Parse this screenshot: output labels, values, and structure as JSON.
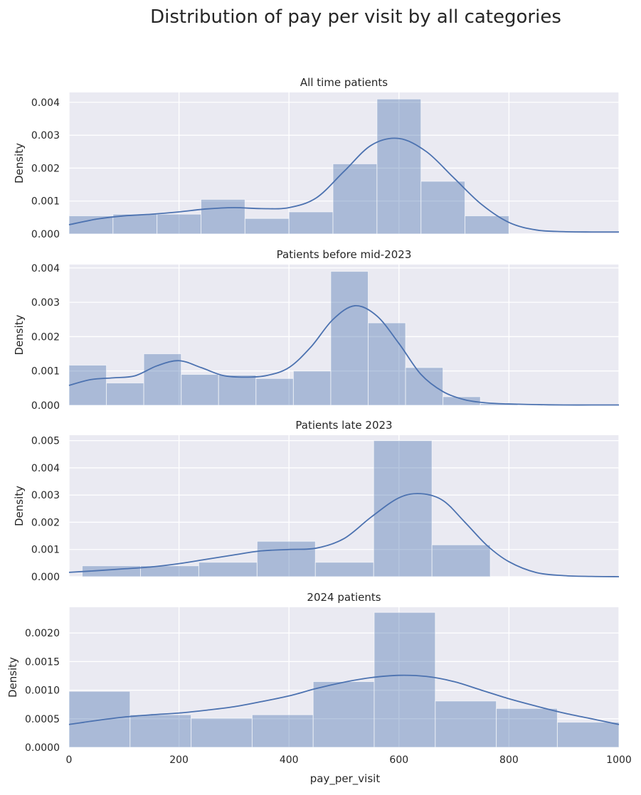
{
  "chart_data": {
    "type": "histogram-with-kde",
    "title": "Distribution of pay per visit by all categories",
    "xlabel": "pay_per_visit",
    "xlim": [
      0,
      1000
    ],
    "xticks": [
      0,
      200,
      400,
      600,
      800,
      1000
    ],
    "xtick_labels": [
      "0",
      "200",
      "400",
      "600",
      "800",
      "1000"
    ],
    "shared_x": true,
    "grid": true,
    "colors": {
      "background": "#eaeaf2",
      "grid": "#ffffff",
      "bar_fill": "#4c72b0",
      "bar_alpha": 0.4,
      "kde_line": "#4c72b0"
    },
    "panels": [
      {
        "title": "All time patients",
        "ylabel": "Density",
        "ylim": [
          0,
          0.0043
        ],
        "yticks": [
          0,
          0.001,
          0.002,
          0.003,
          0.004
        ],
        "ytick_labels": [
          "0.000",
          "0.001",
          "0.002",
          "0.003",
          "0.004"
        ],
        "bins": [
          {
            "x0": 0,
            "x1": 80,
            "density": 0.00055
          },
          {
            "x0": 80,
            "x1": 160,
            "density": 0.0006
          },
          {
            "x0": 160,
            "x1": 240,
            "density": 0.0006
          },
          {
            "x0": 240,
            "x1": 320,
            "density": 0.00105
          },
          {
            "x0": 320,
            "x1": 400,
            "density": 0.00047
          },
          {
            "x0": 400,
            "x1": 480,
            "density": 0.00067
          },
          {
            "x0": 480,
            "x1": 560,
            "density": 0.00213
          },
          {
            "x0": 560,
            "x1": 640,
            "density": 0.0041
          },
          {
            "x0": 640,
            "x1": 720,
            "density": 0.0016
          },
          {
            "x0": 720,
            "x1": 800,
            "density": 0.00055
          }
        ],
        "kde": {
          "x": [
            0,
            50,
            100,
            150,
            200,
            250,
            300,
            350,
            400,
            450,
            500,
            550,
            600,
            650,
            700,
            750,
            800,
            850,
            900,
            950,
            1000
          ],
          "y": [
            0.00028,
            0.00045,
            0.00055,
            0.0006,
            0.00067,
            0.00076,
            0.0008,
            0.00077,
            0.0008,
            0.0011,
            0.0019,
            0.0027,
            0.0029,
            0.0025,
            0.0017,
            0.0009,
            0.00035,
            0.00012,
            7e-05,
            6e-05,
            6e-05
          ]
        }
      },
      {
        "title": "Patients before mid-2023",
        "ylabel": "Density",
        "ylim": [
          0,
          0.0041
        ],
        "yticks": [
          0,
          0.001,
          0.002,
          0.003,
          0.004
        ],
        "ytick_labels": [
          "0.000",
          "0.001",
          "0.002",
          "0.003",
          "0.004"
        ],
        "bins": [
          {
            "x0": 0,
            "x1": 68,
            "density": 0.00117
          },
          {
            "x0": 68,
            "x1": 136,
            "density": 0.00065
          },
          {
            "x0": 136,
            "x1": 204,
            "density": 0.0015
          },
          {
            "x0": 204,
            "x1": 272,
            "density": 0.0009
          },
          {
            "x0": 272,
            "x1": 340,
            "density": 0.00088
          },
          {
            "x0": 340,
            "x1": 408,
            "density": 0.00078
          },
          {
            "x0": 408,
            "x1": 476,
            "density": 0.001
          },
          {
            "x0": 476,
            "x1": 544,
            "density": 0.0039
          },
          {
            "x0": 544,
            "x1": 612,
            "density": 0.0024
          },
          {
            "x0": 612,
            "x1": 680,
            "density": 0.0011
          },
          {
            "x0": 680,
            "x1": 748,
            "density": 0.00025
          },
          {
            "x0": 748,
            "x1": 816,
            "density": 5e-05
          }
        ],
        "kde": {
          "x": [
            0,
            40,
            80,
            120,
            160,
            200,
            240,
            280,
            320,
            360,
            400,
            440,
            480,
            520,
            560,
            600,
            640,
            680,
            720,
            760,
            800,
            850,
            900,
            950,
            1000
          ],
          "y": [
            0.00058,
            0.00075,
            0.0008,
            0.00086,
            0.00115,
            0.0013,
            0.0011,
            0.00087,
            0.00082,
            0.00087,
            0.0011,
            0.0017,
            0.0025,
            0.0029,
            0.0026,
            0.0018,
            0.0009,
            0.0004,
            0.00016,
            7e-05,
            4e-05,
            2e-05,
            1e-05,
            1e-05,
            1e-05
          ]
        }
      },
      {
        "title": "Patients late 2023",
        "ylabel": "Density",
        "ylim": [
          0,
          0.0052
        ],
        "yticks": [
          0,
          0.001,
          0.002,
          0.003,
          0.004,
          0.005
        ],
        "ytick_labels": [
          "0.000",
          "0.001",
          "0.002",
          "0.003",
          "0.004",
          "0.005"
        ],
        "bins": [
          {
            "x0": 24,
            "x1": 130,
            "density": 0.0004
          },
          {
            "x0": 130,
            "x1": 236,
            "density": 0.0004
          },
          {
            "x0": 236,
            "x1": 342,
            "density": 0.00053
          },
          {
            "x0": 342,
            "x1": 448,
            "density": 0.0013
          },
          {
            "x0": 448,
            "x1": 554,
            "density": 0.00053
          },
          {
            "x0": 554,
            "x1": 660,
            "density": 0.005
          },
          {
            "x0": 660,
            "x1": 766,
            "density": 0.00117
          }
        ],
        "kde": {
          "x": [
            0,
            50,
            100,
            150,
            200,
            250,
            300,
            350,
            400,
            450,
            500,
            550,
            600,
            640,
            680,
            720,
            760,
            800,
            850,
            900,
            950,
            1000
          ],
          "y": [
            0.00016,
            0.00022,
            0.00029,
            0.00036,
            0.00048,
            0.00064,
            0.0008,
            0.00095,
            0.001,
            0.00105,
            0.0014,
            0.0022,
            0.0029,
            0.00305,
            0.0028,
            0.002,
            0.00115,
            0.00055,
            0.00015,
            4e-05,
            1e-05,
            0.0
          ]
        }
      },
      {
        "title": "2024 patients",
        "ylabel": "Density",
        "ylim": [
          0,
          0.00245
        ],
        "yticks": [
          0,
          0.0005,
          0.001,
          0.0015,
          0.002
        ],
        "ytick_labels": [
          "0.0000",
          "0.0005",
          "0.0010",
          "0.0015",
          "0.0020"
        ],
        "bins": [
          {
            "x0": 0,
            "x1": 111,
            "density": 0.00098
          },
          {
            "x0": 111,
            "x1": 222,
            "density": 0.00057
          },
          {
            "x0": 222,
            "x1": 333,
            "density": 0.00051
          },
          {
            "x0": 333,
            "x1": 444,
            "density": 0.00057
          },
          {
            "x0": 444,
            "x1": 555,
            "density": 0.00115
          },
          {
            "x0": 555,
            "x1": 666,
            "density": 0.00236
          },
          {
            "x0": 666,
            "x1": 777,
            "density": 0.00081
          },
          {
            "x0": 777,
            "x1": 888,
            "density": 0.00068
          },
          {
            "x0": 888,
            "x1": 1000,
            "density": 0.00044
          }
        ],
        "kde": {
          "x": [
            0,
            50,
            100,
            150,
            200,
            250,
            300,
            350,
            400,
            450,
            500,
            550,
            600,
            650,
            700,
            750,
            800,
            850,
            900,
            950,
            1000
          ],
          "y": [
            0.0004,
            0.00047,
            0.00053,
            0.00057,
            0.0006,
            0.00065,
            0.00071,
            0.0008,
            0.0009,
            0.00103,
            0.00114,
            0.00122,
            0.00126,
            0.00124,
            0.00115,
            0.001,
            0.00085,
            0.00072,
            0.0006,
            0.0005,
            0.0004
          ]
        }
      }
    ]
  }
}
